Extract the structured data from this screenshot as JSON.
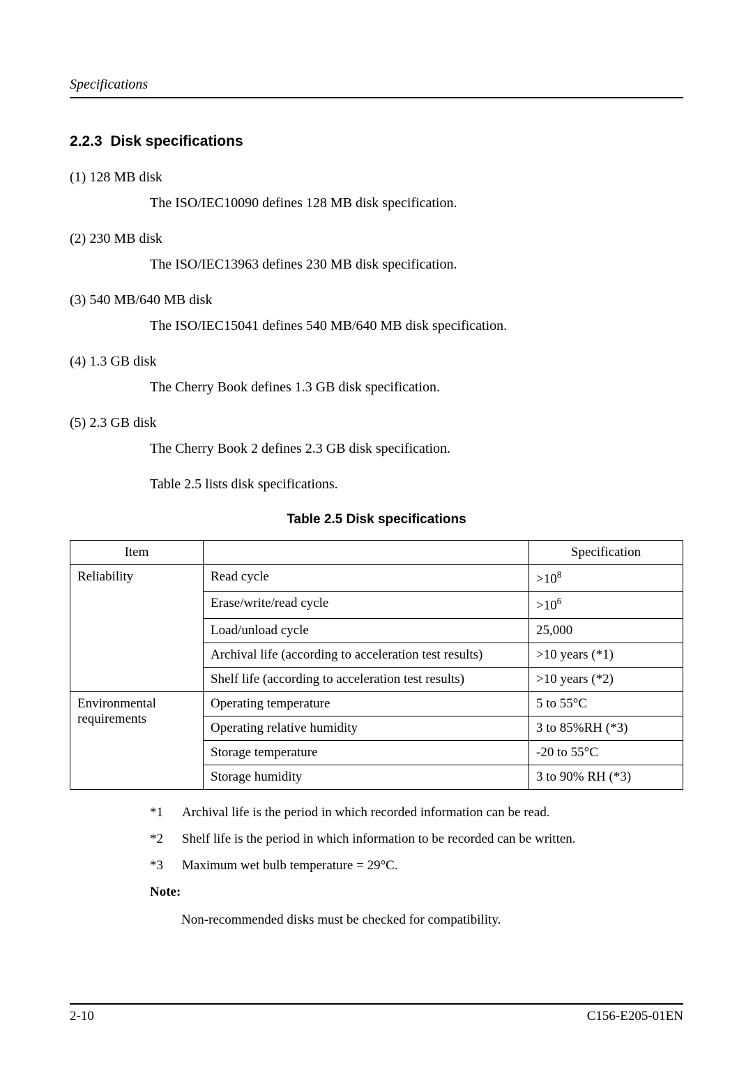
{
  "header": {
    "title": "Specifications"
  },
  "section": {
    "number": "2.2.3",
    "title": "Disk specifications"
  },
  "items": [
    {
      "label": "(1)  128 MB disk",
      "desc": "The ISO/IEC10090 defines 128 MB disk specification."
    },
    {
      "label": "(2)  230 MB disk",
      "desc": "The ISO/IEC13963 defines 230 MB disk specification."
    },
    {
      "label": "(3)  540 MB/640 MB disk",
      "desc": "The ISO/IEC15041 defines 540 MB/640 MB disk specification."
    },
    {
      "label": "(4)  1.3 GB disk",
      "desc": "The Cherry Book defines 1.3 GB disk specification."
    },
    {
      "label": "(5)  2.3 GB disk",
      "desc": "The Cherry Book 2 defines 2.3 GB disk specification."
    }
  ],
  "lead_para": "Table 2.5 lists disk specifications.",
  "table": {
    "caption": "Table 2.5   Disk specifications",
    "headers": {
      "item": "Item",
      "desc": "",
      "spec": "Specification"
    },
    "groups": [
      {
        "item": "Reliability",
        "rows": [
          {
            "desc": "Read cycle",
            "spec_html": ">10<sup>8</sup>"
          },
          {
            "desc": "Erase/write/read cycle",
            "spec_html": ">10<sup>6</sup>"
          },
          {
            "desc": "Load/unload cycle",
            "spec_html": "25,000"
          },
          {
            "desc": "Archival life (according to acceleration test results)",
            "spec_html": ">10 years (*1)"
          },
          {
            "desc": "Shelf life (according to acceleration test results)",
            "spec_html": ">10 years (*2)"
          }
        ]
      },
      {
        "item": "Environmental requirements",
        "rows": [
          {
            "desc": "Operating temperature",
            "spec_html": "5 to 55°C"
          },
          {
            "desc": "Operating relative humidity",
            "spec_html": "3 to 85%RH (*3)"
          },
          {
            "desc": "Storage temperature",
            "spec_html": "-20 to 55°C"
          },
          {
            "desc": "Storage humidity",
            "spec_html": "3 to 90% RH (*3)"
          }
        ]
      }
    ]
  },
  "footnotes": [
    {
      "label": "*1",
      "text": "Archival life is the period in which recorded information can be read."
    },
    {
      "label": "*2",
      "text": "Shelf life is the period in which information to be recorded can be written."
    },
    {
      "label": "*3",
      "text": "Maximum wet bulb temperature = 29°C."
    }
  ],
  "note": {
    "label": "Note:",
    "text": "Non-recommended disks must be checked for compatibility."
  },
  "footer": {
    "page": "2-10",
    "docid": "C156-E205-01EN"
  }
}
